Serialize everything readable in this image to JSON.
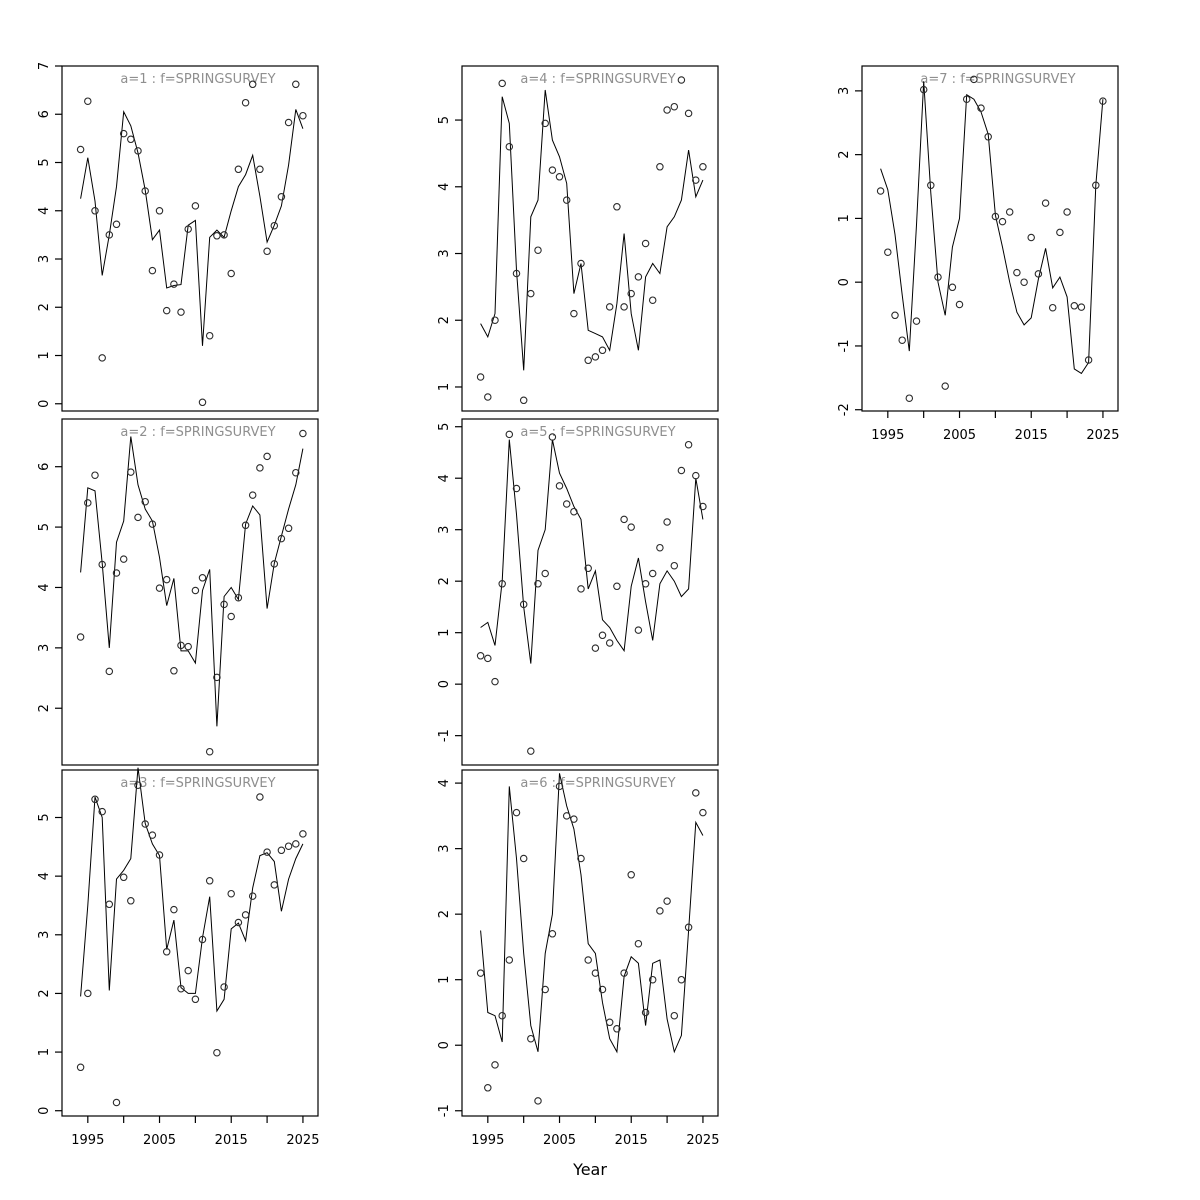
{
  "figure": {
    "xlabel": "Year",
    "years": [
      1994,
      1995,
      1996,
      1997,
      1998,
      1999,
      2000,
      2001,
      2002,
      2003,
      2004,
      2005,
      2006,
      2007,
      2008,
      2009,
      2010,
      2011,
      2012,
      2013,
      2014,
      2015,
      2016,
      2017,
      2018,
      2019,
      2020,
      2021,
      2022,
      2023,
      2024,
      2025
    ],
    "xlim": [
      1991.4,
      2027.1
    ],
    "xticks": [
      1995,
      2000,
      2005,
      2010,
      2015,
      2020,
      2025
    ],
    "labeled_xticks": [
      1995,
      2005,
      2015,
      2025
    ],
    "xtick_labels": [
      "1995",
      "2005",
      "2015",
      "2025"
    ],
    "colors": {
      "line": "#000000",
      "point": "#2b2b2b",
      "title": "#8f8f8f",
      "axis": "#000000",
      "background": "#ffffff"
    }
  },
  "chart_data": [
    {
      "type": "scatter+line",
      "title": "a=1 : f=SPRINGSURVEY",
      "grid": {
        "row": 0,
        "col": 0
      },
      "ylim": [
        -0.15,
        7.0
      ],
      "yticks": [
        0,
        1,
        2,
        3,
        4,
        5,
        6,
        7
      ],
      "show_xaxis": false,
      "observed": [
        5.27,
        6.27,
        4.0,
        0.95,
        3.5,
        3.72,
        5.6,
        5.48,
        5.24,
        4.41,
        2.76,
        4.0,
        1.93,
        2.48,
        1.9,
        3.62,
        4.1,
        0.03,
        1.41,
        3.48,
        3.5,
        2.7,
        4.86,
        6.24,
        6.62,
        4.86,
        3.16,
        3.69,
        4.29,
        5.83,
        6.62,
        5.97
      ],
      "fitted": [
        4.25,
        5.1,
        4.2,
        2.66,
        3.5,
        4.5,
        6.05,
        5.76,
        5.2,
        4.43,
        3.4,
        3.6,
        2.4,
        2.45,
        2.47,
        3.7,
        3.8,
        1.2,
        3.45,
        3.6,
        3.45,
        4.0,
        4.5,
        4.75,
        5.15,
        4.3,
        3.35,
        3.7,
        4.1,
        4.95,
        6.1,
        5.7
      ]
    },
    {
      "type": "scatter+line",
      "title": "a=2 : f=SPRINGSURVEY",
      "grid": {
        "row": 1,
        "col": 0
      },
      "ylim": [
        1.06,
        6.79
      ],
      "yticks": [
        2,
        3,
        4,
        5,
        6
      ],
      "show_xaxis": false,
      "observed": [
        3.18,
        5.4,
        5.86,
        4.38,
        2.61,
        4.24,
        4.47,
        5.91,
        5.16,
        5.42,
        5.05,
        3.99,
        4.13,
        2.62,
        3.04,
        3.02,
        3.95,
        4.16,
        1.28,
        2.51,
        3.72,
        3.52,
        3.83,
        5.03,
        5.53,
        5.98,
        6.17,
        4.39,
        4.81,
        4.98,
        5.9,
        6.55
      ],
      "fitted": [
        4.25,
        5.65,
        5.6,
        4.4,
        3.0,
        4.75,
        5.1,
        6.5,
        5.7,
        5.3,
        5.1,
        4.5,
        3.7,
        4.15,
        2.95,
        2.95,
        2.75,
        3.95,
        4.3,
        1.7,
        3.85,
        4.0,
        3.8,
        5.05,
        5.35,
        5.2,
        3.65,
        4.4,
        4.85,
        5.3,
        5.7,
        6.3
      ]
    },
    {
      "type": "scatter+line",
      "title": "a=3 : f=SPRINGSURVEY",
      "grid": {
        "row": 2,
        "col": 0
      },
      "ylim": [
        -0.09,
        5.81
      ],
      "yticks": [
        0,
        1,
        2,
        3,
        4,
        5
      ],
      "show_xaxis": true,
      "observed": [
        0.74,
        2.0,
        5.31,
        5.1,
        3.52,
        0.14,
        3.98,
        3.58,
        5.55,
        4.89,
        4.7,
        4.36,
        2.71,
        3.43,
        2.08,
        2.39,
        1.9,
        2.92,
        3.92,
        0.99,
        2.11,
        3.7,
        3.21,
        3.34,
        3.66,
        5.35,
        4.41,
        3.85,
        4.44,
        4.51,
        4.55,
        4.72
      ],
      "fitted": [
        1.95,
        3.5,
        5.35,
        5.0,
        2.05,
        3.95,
        4.1,
        4.3,
        5.85,
        4.9,
        4.55,
        4.35,
        2.75,
        3.25,
        2.1,
        2.0,
        2.0,
        2.95,
        3.65,
        1.7,
        1.9,
        3.1,
        3.2,
        2.9,
        3.8,
        4.35,
        4.4,
        4.25,
        3.4,
        3.95,
        4.3,
        4.55
      ]
    },
    {
      "type": "scatter+line",
      "title": "a=4 : f=SPRINGSURVEY",
      "grid": {
        "row": 0,
        "col": 1
      },
      "ylim": [
        0.64,
        5.81
      ],
      "yticks": [
        1,
        2,
        3,
        4,
        5
      ],
      "show_xaxis": false,
      "observed": [
        1.15,
        0.85,
        2.0,
        5.55,
        4.6,
        2.7,
        0.8,
        2.4,
        3.05,
        4.95,
        4.25,
        4.15,
        3.8,
        2.1,
        2.85,
        1.4,
        1.45,
        1.55,
        2.2,
        3.7,
        2.2,
        2.4,
        2.65,
        3.15,
        2.3,
        4.3,
        5.15,
        5.2,
        5.6,
        5.1,
        4.1,
        4.3
      ],
      "fitted": [
        1.95,
        1.75,
        2.1,
        5.35,
        4.95,
        2.75,
        1.25,
        3.55,
        3.8,
        5.45,
        4.7,
        4.45,
        4.05,
        2.4,
        2.85,
        1.85,
        1.8,
        1.75,
        1.55,
        2.25,
        3.3,
        2.1,
        1.55,
        2.65,
        2.85,
        2.7,
        3.4,
        3.55,
        3.8,
        4.55,
        3.85,
        4.1
      ]
    },
    {
      "type": "scatter+line",
      "title": "a=5 : f=SPRINGSURVEY",
      "grid": {
        "row": 1,
        "col": 1
      },
      "ylim": [
        -1.57,
        5.15
      ],
      "yticks": [
        -1,
        0,
        1,
        2,
        3,
        4,
        5
      ],
      "show_xaxis": false,
      "observed": [
        0.55,
        0.5,
        0.05,
        1.95,
        4.85,
        3.8,
        1.55,
        -1.3,
        1.95,
        2.15,
        4.8,
        3.85,
        3.5,
        3.35,
        1.85,
        2.25,
        0.7,
        0.95,
        0.8,
        1.9,
        3.2,
        3.05,
        1.05,
        1.95,
        2.15,
        2.65,
        3.15,
        2.3,
        4.15,
        4.65,
        4.05,
        3.45
      ],
      "fitted": [
        1.1,
        1.2,
        0.75,
        2.0,
        4.75,
        3.3,
        1.5,
        0.4,
        2.6,
        3.0,
        4.75,
        4.1,
        3.8,
        3.45,
        3.2,
        1.85,
        2.2,
        1.25,
        1.1,
        0.85,
        0.65,
        1.9,
        2.45,
        1.6,
        0.85,
        1.95,
        2.2,
        2.0,
        1.7,
        1.85,
        4.0,
        3.2
      ]
    },
    {
      "type": "scatter+line",
      "title": "a=6 : f=SPRINGSURVEY",
      "grid": {
        "row": 2,
        "col": 1
      },
      "ylim": [
        -1.08,
        4.2
      ],
      "yticks": [
        -1,
        0,
        1,
        2,
        3,
        4
      ],
      "show_xaxis": true,
      "observed": [
        1.1,
        -0.65,
        -0.3,
        0.45,
        1.3,
        3.55,
        2.85,
        0.1,
        -0.85,
        0.85,
        1.7,
        3.95,
        3.5,
        3.45,
        2.85,
        1.3,
        1.1,
        0.85,
        0.35,
        0.25,
        1.1,
        2.6,
        1.55,
        0.5,
        1.0,
        2.05,
        2.2,
        0.45,
        1.0,
        1.8,
        3.85,
        3.55
      ],
      "fitted": [
        1.75,
        0.5,
        0.45,
        0.05,
        3.95,
        2.85,
        1.4,
        0.3,
        -0.1,
        1.4,
        2.0,
        4.15,
        3.65,
        3.3,
        2.6,
        1.55,
        1.4,
        0.65,
        0.1,
        -0.1,
        1.05,
        1.35,
        1.25,
        0.3,
        1.25,
        1.3,
        0.4,
        -0.1,
        0.15,
        1.75,
        3.4,
        3.2
      ]
    },
    {
      "type": "scatter+line",
      "title": "a=7 : f=SPRINGSURVEY",
      "grid": {
        "row": 0,
        "col": 2
      },
      "ylim": [
        -2.02,
        3.39
      ],
      "yticks": [
        -2,
        -1,
        0,
        1,
        2,
        3
      ],
      "show_xaxis": true,
      "observed": [
        1.43,
        0.47,
        -0.52,
        -0.91,
        -1.82,
        -0.61,
        3.02,
        1.52,
        0.08,
        -1.63,
        -0.08,
        -0.35,
        2.87,
        3.18,
        2.73,
        2.28,
        1.03,
        0.95,
        1.1,
        0.15,
        0.0,
        0.7,
        0.13,
        1.24,
        -0.4,
        0.78,
        1.1,
        -0.37,
        -0.39,
        -1.22,
        1.52,
        2.84
      ],
      "fitted": [
        1.78,
        1.45,
        0.75,
        -0.2,
        -1.08,
        0.9,
        3.15,
        1.4,
        0.0,
        -0.52,
        0.55,
        1.0,
        2.94,
        2.87,
        2.67,
        2.32,
        1.05,
        0.55,
        0.0,
        -0.47,
        -0.67,
        -0.56,
        0.05,
        0.53,
        -0.09,
        0.08,
        -0.23,
        -1.36,
        -1.43,
        -1.26,
        1.52,
        2.87
      ]
    }
  ]
}
